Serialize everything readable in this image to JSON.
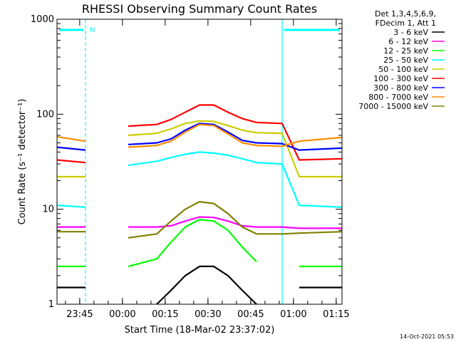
{
  "chart_data": {
    "type": "line",
    "title": "RHESSI Observing Summary Count Rates",
    "xlabel": "Start Time (18-Mar-02 23:37:02)",
    "ylabel": "Count Rate (s⁻¹ detector⁻¹)",
    "yscale": "log",
    "ylim": [
      1,
      1000
    ],
    "y_ticks": [
      {
        "value": 1,
        "label": "1"
      },
      {
        "value": 10,
        "label": "10"
      },
      {
        "value": 100,
        "label": "100"
      },
      {
        "value": 1000,
        "label": "1000"
      }
    ],
    "x_unit": "minutes after 23:37:02",
    "xlim": [
      0,
      100
    ],
    "x_ticks": [
      {
        "value": 7.97,
        "label": "23:45"
      },
      {
        "value": 22.97,
        "label": "00:00"
      },
      {
        "value": 37.97,
        "label": "00:15"
      },
      {
        "value": 52.97,
        "label": "00:30"
      },
      {
        "value": 67.97,
        "label": "00:45"
      },
      {
        "value": 82.97,
        "label": "01:00"
      },
      {
        "value": 97.97,
        "label": "01:15"
      }
    ],
    "legend_header": [
      "Det 1,3,4,5,6,9,",
      "FDecim 1, Att 1"
    ],
    "legend_position": "top-right",
    "series": [
      {
        "name": "3 - 6 keV",
        "color": "#000000",
        "x": [
          0,
          10,
          16,
          25,
          35,
          40,
          45,
          50,
          55,
          60,
          65,
          70,
          79,
          85,
          100
        ],
        "y": [
          1.5,
          1.5,
          null,
          null,
          1.0,
          1.4,
          2.0,
          2.5,
          2.5,
          2.0,
          1.4,
          1.0,
          null,
          1.5,
          1.5
        ]
      },
      {
        "name": "6 - 12 keV",
        "color": "#ff00ff",
        "x": [
          0,
          10,
          16,
          25,
          35,
          40,
          45,
          50,
          55,
          60,
          65,
          70,
          79,
          85,
          100
        ],
        "y": [
          6.5,
          6.5,
          null,
          6.5,
          6.5,
          6.7,
          7.5,
          8.3,
          8.2,
          7.5,
          6.7,
          6.5,
          6.5,
          6.3,
          6.3
        ]
      },
      {
        "name": "12 - 25 keV",
        "color": "#00ff00",
        "x": [
          0,
          10,
          16,
          25,
          35,
          40,
          45,
          50,
          55,
          60,
          65,
          70,
          79,
          85,
          100
        ],
        "y": [
          2.5,
          2.5,
          null,
          2.5,
          3.0,
          4.5,
          6.5,
          7.8,
          7.5,
          6.0,
          4.0,
          2.8,
          null,
          2.5,
          2.5
        ]
      },
      {
        "name": "25 - 50 keV",
        "color": "#00ffff",
        "x": [
          0,
          10,
          16,
          25,
          35,
          40,
          45,
          50,
          55,
          60,
          65,
          70,
          79,
          85,
          100
        ],
        "y": [
          11,
          10.5,
          null,
          29,
          32,
          35,
          38,
          40,
          39,
          37,
          34,
          31,
          30,
          11,
          10.5
        ]
      },
      {
        "name": "50 - 100 keV",
        "color": "#cccc00",
        "x": [
          0,
          10,
          16,
          25,
          35,
          40,
          45,
          50,
          55,
          60,
          65,
          70,
          79,
          85,
          100
        ],
        "y": [
          22,
          22,
          null,
          60,
          63,
          70,
          80,
          85,
          84,
          76,
          68,
          64,
          63,
          22,
          22
        ]
      },
      {
        "name": "100 - 300 keV",
        "color": "#ff0000",
        "x": [
          0,
          10,
          16,
          25,
          35,
          40,
          45,
          50,
          55,
          60,
          65,
          70,
          79,
          85,
          100
        ],
        "y": [
          33,
          31,
          null,
          75,
          78,
          88,
          105,
          125,
          125,
          105,
          90,
          82,
          80,
          33,
          34
        ]
      },
      {
        "name": "300 - 800 keV",
        "color": "#0000ff",
        "x": [
          0,
          10,
          16,
          25,
          35,
          40,
          45,
          50,
          55,
          60,
          65,
          70,
          79,
          85,
          100
        ],
        "y": [
          45,
          42,
          null,
          48,
          50,
          55,
          68,
          80,
          78,
          65,
          53,
          50,
          49,
          42,
          44
        ]
      },
      {
        "name": "800 - 7000 keV",
        "color": "#ff8c00",
        "x": [
          0,
          10,
          16,
          25,
          35,
          40,
          45,
          50,
          55,
          60,
          65,
          70,
          79,
          85,
          100
        ],
        "y": [
          58,
          52,
          null,
          45,
          47,
          52,
          65,
          78,
          76,
          62,
          50,
          47,
          46,
          52,
          57
        ]
      },
      {
        "name": "7000 - 15000 keV",
        "color": "#808000",
        "x": [
          0,
          10,
          16,
          25,
          35,
          40,
          45,
          50,
          55,
          60,
          65,
          70,
          79,
          85,
          100
        ],
        "y": [
          5.8,
          5.8,
          null,
          5.0,
          5.5,
          7.5,
          10,
          12,
          11.5,
          9.0,
          6.5,
          5.5,
          5.5,
          5.6,
          5.8
        ]
      }
    ],
    "annotations": {
      "marker": "N",
      "night_intervals": [
        [
          0,
          10
        ],
        [
          79,
          100
        ]
      ],
      "intervals_color": "#00ffff"
    },
    "timestamp": "14-Oct-2021 05:53"
  }
}
